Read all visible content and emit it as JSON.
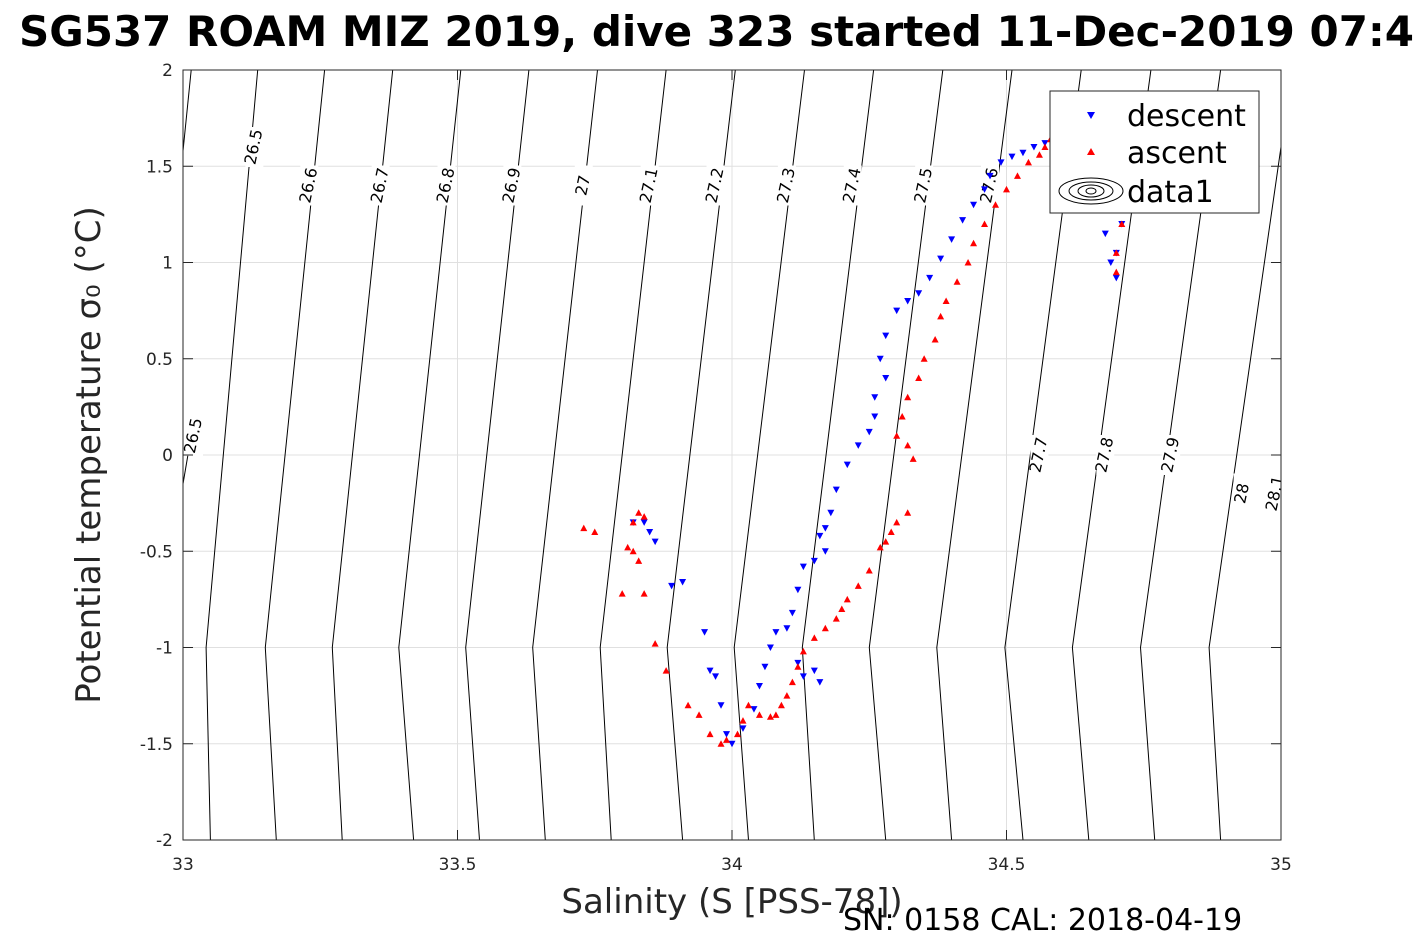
{
  "chart_data": {
    "type": "scatter",
    "title": "SG537 ROAM MIZ 2019, dive 323 started 11-Dec-2019 07:4",
    "xlabel": "Salinity (S [PSS-78])",
    "ylabel": "Potential temperature σ₀ (°C)",
    "footer": "SN: 0158  CAL: 2018-04-19",
    "xlim": [
      33,
      35
    ],
    "ylim": [
      -2,
      2
    ],
    "x_ticks": [
      "33",
      "33.5",
      "34",
      "34.5",
      "35"
    ],
    "y_ticks": [
      "2",
      "1.5",
      "1",
      "0.5",
      "0",
      "-0.5",
      "-1",
      "-1.5",
      "-2"
    ],
    "grid": true,
    "legend": {
      "position": "top-right",
      "entries": [
        "descent",
        "ascent",
        "data1"
      ]
    },
    "colors": {
      "descent": "#0000ff",
      "ascent": "#ff0000",
      "contour": "#000000"
    },
    "density_contours": [
      {
        "label": "26.5",
        "points": [
          [
            33.015,
            2.0
          ],
          [
            33.0,
            1.58
          ]
        ],
        "label_at": [
          33.13,
          1.6
        ]
      },
      {
        "label": "26.5",
        "points": [
          [
            33.0,
            -0.15
          ],
          [
            33.015,
            0.1
          ]
        ],
        "label_at": [
          33.02,
          0.1
        ]
      },
      {
        "label": "26.6",
        "points": [
          [
            33.136,
            2.0
          ],
          [
            33.042,
            -1.0
          ],
          [
            33.05,
            -2.0
          ]
        ],
        "label_at": [
          33.23,
          1.4
        ]
      },
      {
        "label": "26.7",
        "points": [
          [
            33.258,
            2.0
          ],
          [
            33.15,
            -1.0
          ],
          [
            33.17,
            -2.0
          ]
        ],
        "label_at": [
          33.36,
          1.4
        ]
      },
      {
        "label": "26.8",
        "points": [
          [
            33.382,
            2.0
          ],
          [
            33.272,
            -1.0
          ],
          [
            33.29,
            -2.0
          ]
        ],
        "label_at": [
          33.48,
          1.4
        ]
      },
      {
        "label": "26.9",
        "points": [
          [
            33.506,
            2.0
          ],
          [
            33.393,
            -1.0
          ],
          [
            33.42,
            -2.0
          ]
        ],
        "label_at": [
          33.6,
          1.4
        ]
      },
      {
        "label": "27",
        "points": [
          [
            33.63,
            2.0
          ],
          [
            33.515,
            -1.0
          ],
          [
            33.54,
            -2.0
          ]
        ],
        "label_at": [
          33.73,
          1.4
        ]
      },
      {
        "label": "27.1",
        "points": [
          [
            33.755,
            2.0
          ],
          [
            33.637,
            -1.0
          ],
          [
            33.66,
            -2.0
          ]
        ],
        "label_at": [
          33.85,
          1.4
        ]
      },
      {
        "label": "27.2",
        "points": [
          [
            33.88,
            2.0
          ],
          [
            33.76,
            -1.0
          ],
          [
            33.78,
            -2.0
          ]
        ],
        "label_at": [
          33.97,
          1.4
        ]
      },
      {
        "label": "27.3",
        "points": [
          [
            34.006,
            2.0
          ],
          [
            33.882,
            -1.0
          ],
          [
            33.91,
            -2.0
          ]
        ],
        "label_at": [
          34.1,
          1.4
        ]
      },
      {
        "label": "27.4",
        "points": [
          [
            34.132,
            2.0
          ],
          [
            34.004,
            -1.0
          ],
          [
            34.03,
            -2.0
          ]
        ],
        "label_at": [
          34.22,
          1.4
        ]
      },
      {
        "label": "27.5",
        "points": [
          [
            34.258,
            2.0
          ],
          [
            34.128,
            -1.0
          ],
          [
            34.15,
            -2.0
          ]
        ],
        "label_at": [
          34.35,
          1.4
        ]
      },
      {
        "label": "27.6",
        "points": [
          [
            34.384,
            2.0
          ],
          [
            34.25,
            -1.0
          ],
          [
            34.28,
            -2.0
          ]
        ],
        "label_at": [
          34.47,
          1.4
        ]
      },
      {
        "label": "27.7",
        "points": [
          [
            34.51,
            2.0
          ],
          [
            34.373,
            -1.0
          ],
          [
            34.4,
            -2.0
          ]
        ],
        "label_at": [
          34.56,
          0.0
        ]
      },
      {
        "label": "27.8",
        "points": [
          [
            34.636,
            2.0
          ],
          [
            34.497,
            -1.0
          ],
          [
            34.53,
            -2.0
          ]
        ],
        "label_at": [
          34.68,
          0.0
        ]
      },
      {
        "label": "27.9",
        "points": [
          [
            34.763,
            2.0
          ],
          [
            34.62,
            -1.0
          ],
          [
            34.65,
            -2.0
          ]
        ],
        "label_at": [
          34.8,
          0.0
        ]
      },
      {
        "label": "28",
        "points": [
          [
            34.89,
            2.0
          ],
          [
            34.744,
            -1.0
          ],
          [
            34.77,
            -2.0
          ]
        ],
        "label_at": [
          34.93,
          -0.2
        ]
      },
      {
        "label": "28.1",
        "points": [
          [
            35.0,
            1.6
          ],
          [
            34.869,
            -1.0
          ],
          [
            34.89,
            -2.0
          ]
        ],
        "label_at": [
          34.99,
          -0.2
        ]
      }
    ],
    "series": [
      {
        "name": "descent",
        "marker": "triangle-down",
        "color": "#0000ff",
        "points": [
          [
            34.57,
            1.62
          ],
          [
            34.55,
            1.6
          ],
          [
            34.53,
            1.57
          ],
          [
            34.51,
            1.55
          ],
          [
            34.49,
            1.52
          ],
          [
            34.47,
            1.45
          ],
          [
            34.46,
            1.38
          ],
          [
            34.44,
            1.3
          ],
          [
            34.42,
            1.22
          ],
          [
            34.4,
            1.12
          ],
          [
            34.38,
            1.02
          ],
          [
            34.36,
            0.92
          ],
          [
            34.34,
            0.84
          ],
          [
            34.32,
            0.8
          ],
          [
            34.3,
            0.75
          ],
          [
            34.28,
            0.62
          ],
          [
            34.27,
            0.5
          ],
          [
            34.28,
            0.4
          ],
          [
            34.26,
            0.3
          ],
          [
            34.26,
            0.2
          ],
          [
            34.25,
            0.12
          ],
          [
            34.23,
            0.05
          ],
          [
            34.21,
            -0.05
          ],
          [
            34.19,
            -0.18
          ],
          [
            34.18,
            -0.3
          ],
          [
            34.17,
            -0.38
          ],
          [
            34.16,
            -0.42
          ],
          [
            34.17,
            -0.5
          ],
          [
            34.15,
            -0.55
          ],
          [
            34.13,
            -0.58
          ],
          [
            34.12,
            -0.7
          ],
          [
            34.11,
            -0.82
          ],
          [
            34.1,
            -0.9
          ],
          [
            34.08,
            -0.92
          ],
          [
            34.07,
            -1.0
          ],
          [
            34.06,
            -1.1
          ],
          [
            34.05,
            -1.2
          ],
          [
            34.04,
            -1.32
          ],
          [
            34.02,
            -1.42
          ],
          [
            34.0,
            -1.5
          ],
          [
            33.99,
            -1.45
          ],
          [
            33.98,
            -1.3
          ],
          [
            33.97,
            -1.15
          ],
          [
            33.96,
            -1.12
          ],
          [
            33.95,
            -0.92
          ],
          [
            33.91,
            -0.66
          ],
          [
            33.89,
            -0.68
          ],
          [
            33.86,
            -0.45
          ],
          [
            33.85,
            -0.4
          ],
          [
            33.84,
            -0.35
          ],
          [
            33.82,
            -0.35
          ],
          [
            34.12,
            -1.08
          ],
          [
            34.13,
            -1.15
          ],
          [
            34.15,
            -1.12
          ],
          [
            34.16,
            -1.18
          ],
          [
            34.68,
            1.15
          ],
          [
            34.69,
            1.0
          ],
          [
            34.7,
            0.92
          ],
          [
            34.7,
            1.05
          ],
          [
            34.71,
            1.2
          ]
        ]
      },
      {
        "name": "ascent",
        "marker": "triangle-up",
        "color": "#ff0000",
        "points": [
          [
            34.58,
            1.64
          ],
          [
            34.57,
            1.6
          ],
          [
            34.56,
            1.56
          ],
          [
            34.54,
            1.52
          ],
          [
            34.52,
            1.45
          ],
          [
            34.5,
            1.38
          ],
          [
            34.48,
            1.3
          ],
          [
            34.46,
            1.2
          ],
          [
            34.44,
            1.1
          ],
          [
            34.43,
            1.0
          ],
          [
            34.41,
            0.9
          ],
          [
            34.39,
            0.8
          ],
          [
            34.38,
            0.72
          ],
          [
            34.37,
            0.6
          ],
          [
            34.35,
            0.5
          ],
          [
            34.34,
            0.4
          ],
          [
            34.32,
            0.3
          ],
          [
            34.31,
            0.2
          ],
          [
            34.3,
            0.1
          ],
          [
            34.32,
            0.05
          ],
          [
            34.33,
            -0.02
          ],
          [
            34.32,
            -0.3
          ],
          [
            34.3,
            -0.35
          ],
          [
            34.29,
            -0.4
          ],
          [
            34.28,
            -0.45
          ],
          [
            34.27,
            -0.48
          ],
          [
            34.25,
            -0.6
          ],
          [
            34.23,
            -0.68
          ],
          [
            34.21,
            -0.75
          ],
          [
            34.2,
            -0.8
          ],
          [
            34.19,
            -0.85
          ],
          [
            34.17,
            -0.9
          ],
          [
            34.15,
            -0.95
          ],
          [
            34.13,
            -1.02
          ],
          [
            34.12,
            -1.1
          ],
          [
            34.11,
            -1.18
          ],
          [
            34.1,
            -1.25
          ],
          [
            34.09,
            -1.3
          ],
          [
            34.08,
            -1.35
          ],
          [
            34.07,
            -1.36
          ],
          [
            34.05,
            -1.35
          ],
          [
            34.03,
            -1.3
          ],
          [
            34.02,
            -1.38
          ],
          [
            34.01,
            -1.45
          ],
          [
            33.99,
            -1.48
          ],
          [
            33.98,
            -1.5
          ],
          [
            33.96,
            -1.45
          ],
          [
            33.94,
            -1.35
          ],
          [
            33.92,
            -1.3
          ],
          [
            33.88,
            -1.12
          ],
          [
            33.86,
            -0.98
          ],
          [
            33.84,
            -0.72
          ],
          [
            33.83,
            -0.55
          ],
          [
            33.82,
            -0.5
          ],
          [
            33.81,
            -0.48
          ],
          [
            33.8,
            -0.72
          ],
          [
            33.73,
            -0.38
          ],
          [
            33.75,
            -0.4
          ],
          [
            33.82,
            -0.35
          ],
          [
            33.83,
            -0.3
          ],
          [
            33.84,
            -0.32
          ],
          [
            34.71,
            1.2
          ],
          [
            34.7,
            1.05
          ],
          [
            34.7,
            0.95
          ],
          [
            34.71,
            1.3
          ]
        ]
      }
    ]
  }
}
